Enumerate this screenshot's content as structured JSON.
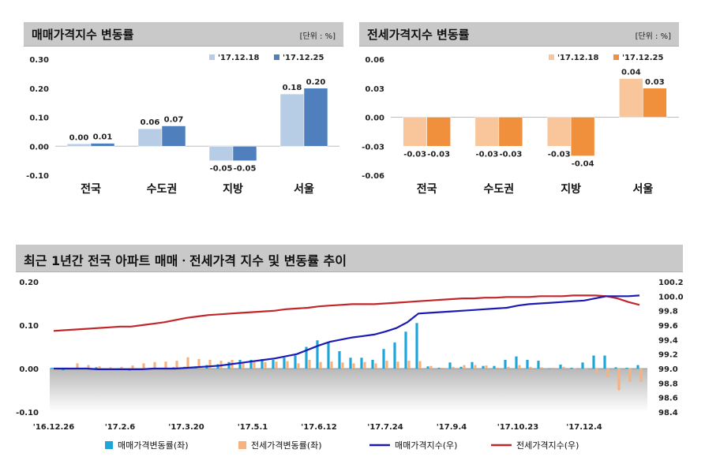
{
  "sale_panel": {
    "title": "매매가격지수 변동률",
    "unit": "[단위 : %]"
  },
  "jeonse_panel": {
    "title": "전세가격지수 변동률",
    "unit": "[단위 : %]"
  },
  "trend_panel": {
    "title": "최근 1년간 전국 아파트 매매ㆍ전세가격 지수 및 변동률 추이"
  },
  "colors": {
    "sale_prev": "#b7cde6",
    "sale_curr": "#4f7fbd",
    "jeonse_prev": "#f8c69a",
    "jeonse_curr": "#f0903c",
    "sale_change_bar": "#1ea6d8",
    "jeonse_change_bar": "#f6b27f",
    "sale_index_line": "#1b1bb3",
    "jeonse_index_line": "#c0262a"
  },
  "chart_data": [
    {
      "type": "bar",
      "categories": [
        "전국",
        "수도권",
        "지방",
        "서울"
      ],
      "series": [
        {
          "name": "'17.12.18",
          "values": [
            0.0,
            0.06,
            -0.05,
            0.18
          ]
        },
        {
          "name": "'17.12.25",
          "values": [
            0.01,
            0.07,
            -0.05,
            0.2
          ]
        }
      ],
      "ylim": [
        -0.1,
        0.3
      ],
      "yticks": [
        "0.30",
        "0.20",
        "0.10",
        "0.00",
        "-0.10"
      ],
      "data_labels": [
        [
          "0.00",
          "0.06",
          "-0.05",
          "0.18"
        ],
        [
          "0.01",
          "0.07",
          "-0.05",
          "0.20"
        ]
      ],
      "legend": "top-right"
    },
    {
      "type": "bar",
      "categories": [
        "전국",
        "수도권",
        "지방",
        "서울"
      ],
      "series": [
        {
          "name": "'17.12.18",
          "values": [
            -0.03,
            -0.03,
            -0.03,
            0.04
          ]
        },
        {
          "name": "'17.12.25",
          "values": [
            -0.03,
            -0.03,
            -0.04,
            0.03
          ]
        }
      ],
      "ylim": [
        -0.06,
        0.06
      ],
      "yticks": [
        "0.06",
        "0.03",
        "0.00",
        "-0.03",
        "-0.06"
      ],
      "data_labels": [
        [
          "-0.03",
          "-0.03",
          "-0.03",
          "0.04"
        ],
        [
          "-0.03",
          "-0.03",
          "-0.04",
          "0.03"
        ]
      ],
      "legend": "top-right"
    },
    {
      "type": "bar+line",
      "x_ticks": [
        "'16.12.26",
        "'17.2.6",
        "'17.3.20",
        "'17.5.1",
        "'17.6.12",
        "'17.7.24",
        "'17.9.4",
        "'17.10.23",
        "'17.12.4"
      ],
      "left_ylim": [
        -0.1,
        0.2
      ],
      "left_yticks": [
        "0.20",
        "0.10",
        "0.00",
        "-0.10"
      ],
      "right_ylim": [
        98.4,
        100.2
      ],
      "right_yticks": [
        "100.2",
        "100.0",
        "99.8",
        "99.6",
        "99.4",
        "99.2",
        "99.0",
        "98.8",
        "98.6",
        "98.4"
      ],
      "legend": "bottom",
      "series": [
        {
          "name": "매매가격변동률(좌)",
          "kind": "bar",
          "axis": "left",
          "values": [
            0.002,
            -0.004,
            0.001,
            0.002,
            0.003,
            -0.002,
            0.001,
            -0.005,
            -0.002,
            0.001,
            0.002,
            0.003,
            0.004,
            0.005,
            0.008,
            0.01,
            0.015,
            0.02,
            0.02,
            0.022,
            0.02,
            0.025,
            0.03,
            0.05,
            0.065,
            0.06,
            0.04,
            0.025,
            0.025,
            0.02,
            0.045,
            0.06,
            0.085,
            0.105,
            0.005,
            0.002,
            0.014,
            0.004,
            0.015,
            0.006,
            0.006,
            0.02,
            0.028,
            0.02,
            0.018,
            0.001,
            0.009,
            0.002,
            0.014,
            0.03,
            0.03,
            0.003,
            0.002,
            0.008
          ]
        },
        {
          "name": "전세가격변동률(좌)",
          "kind": "bar",
          "axis": "left",
          "values": [
            -0.003,
            0.002,
            0.012,
            0.008,
            0.005,
            0.003,
            0.004,
            0.007,
            0.012,
            0.015,
            0.016,
            0.018,
            0.026,
            0.022,
            0.02,
            0.018,
            0.02,
            0.015,
            0.016,
            0.015,
            0.016,
            0.017,
            0.012,
            0.02,
            0.015,
            0.016,
            0.014,
            0.012,
            0.015,
            0.012,
            0.018,
            0.016,
            0.018,
            0.017,
            0.006,
            0.002,
            0.004,
            0.008,
            0.008,
            0.007,
            0.002,
            0.004,
            0.008,
            0.004,
            0.003,
            0.002,
            0.004,
            0.001,
            -0.002,
            -0.01,
            -0.02,
            -0.05,
            -0.03,
            -0.03
          ]
        },
        {
          "name": "매매가격지수(우)",
          "kind": "line",
          "axis": "right",
          "values": [
            99.0,
            99.0,
            99.0,
            99.0,
            98.99,
            98.99,
            98.99,
            98.99,
            98.99,
            99.0,
            99.0,
            99.0,
            99.01,
            99.02,
            99.03,
            99.04,
            99.06,
            99.08,
            99.1,
            99.12,
            99.14,
            99.17,
            99.2,
            99.26,
            99.32,
            99.37,
            99.4,
            99.43,
            99.45,
            99.47,
            99.51,
            99.56,
            99.64,
            99.76,
            99.77,
            99.78,
            99.79,
            99.8,
            99.81,
            99.82,
            99.83,
            99.84,
            99.87,
            99.89,
            99.9,
            99.91,
            99.92,
            99.93,
            99.94,
            99.97,
            100.0,
            100.0,
            100.0,
            100.01
          ]
        },
        {
          "name": "전세가격지수(우)",
          "kind": "line",
          "axis": "right",
          "values": [
            99.52,
            99.53,
            99.54,
            99.55,
            99.56,
            99.57,
            99.58,
            99.58,
            99.6,
            99.62,
            99.64,
            99.67,
            99.7,
            99.72,
            99.74,
            99.75,
            99.76,
            99.77,
            99.78,
            99.79,
            99.8,
            99.82,
            99.83,
            99.84,
            99.86,
            99.87,
            99.88,
            99.89,
            99.89,
            99.89,
            99.9,
            99.91,
            99.92,
            99.93,
            99.94,
            99.95,
            99.96,
            99.97,
            99.97,
            99.98,
            99.98,
            99.99,
            99.99,
            99.99,
            100.0,
            100.0,
            100.0,
            100.01,
            100.01,
            100.01,
            100.0,
            99.97,
            99.92,
            99.88
          ]
        }
      ]
    }
  ]
}
